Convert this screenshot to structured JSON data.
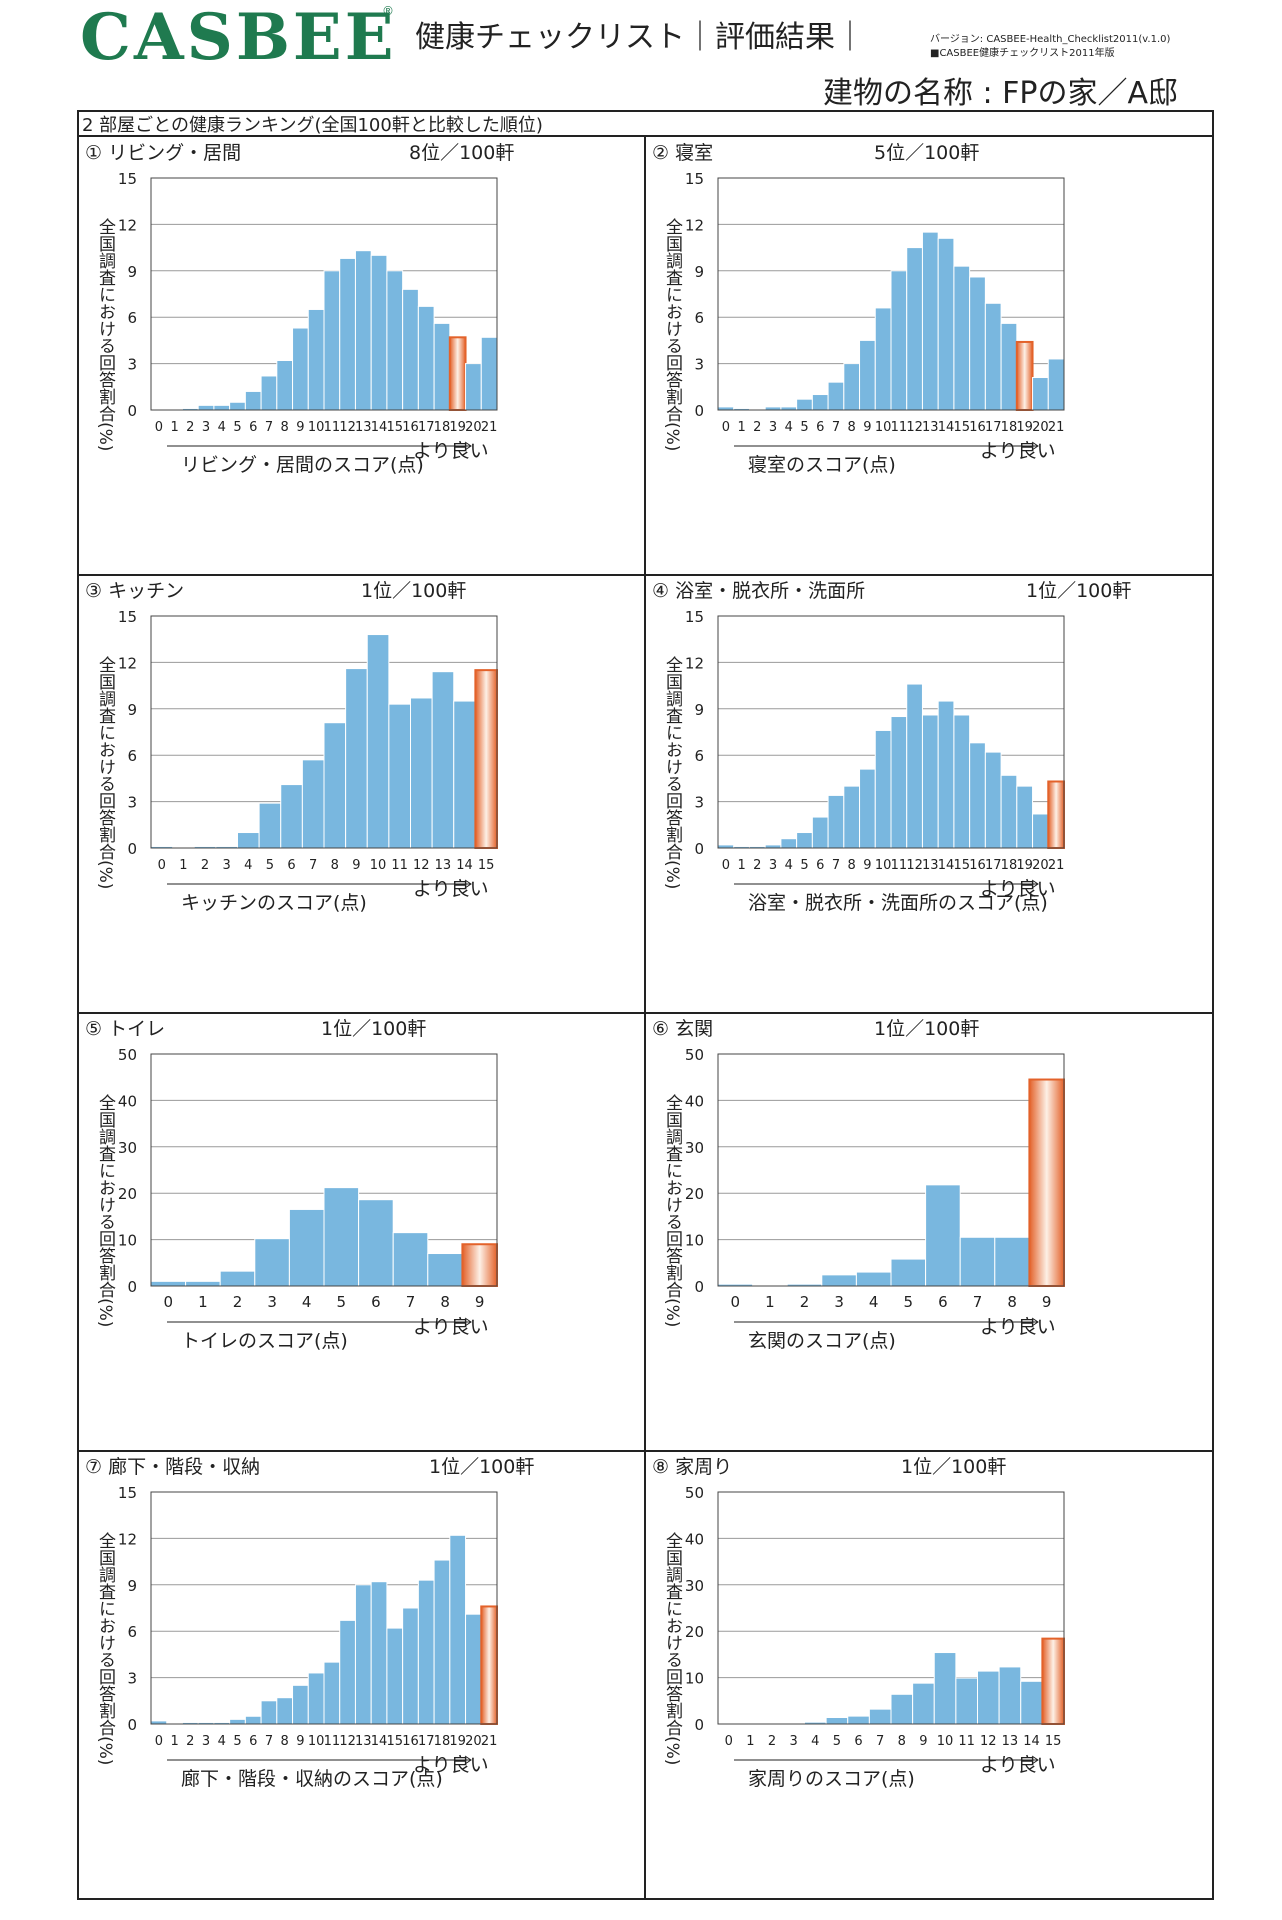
{
  "header": {
    "logo": "CASBEE",
    "logo_mark": "®",
    "title": "健康チェックリスト｜評価結果｜",
    "version": "バージョン: CASBEE-Health_Checklist2011(v.1.0)",
    "edition": "■CASBEE健康チェックリスト2011年版",
    "building_name": "建物の名称 : FPの家／A邸"
  },
  "section_title": "2 部屋ごとの健康ランキング(全国100軒と比較した順位)",
  "y_label": "全国調査における回答割合(%)",
  "better_label": "より良い",
  "colors": {
    "bar": "#79b7df",
    "highlight": "#e3622a",
    "highlight_light": "#fdf0e6"
  },
  "chart_data": [
    {
      "type": "bar",
      "title": "① リビング・居間",
      "rank": "8位／100軒",
      "xlabel": "リビング・居間のスコア(点)",
      "ylabel": "全国調査における回答割合(%)",
      "categories": [
        "0",
        "1",
        "2",
        "3",
        "4",
        "5",
        "6",
        "7",
        "8",
        "9",
        "10",
        "11",
        "12",
        "13",
        "14",
        "15",
        "16",
        "17",
        "18",
        "19",
        "20",
        "21"
      ],
      "values": [
        0,
        0,
        0.1,
        0.3,
        0.3,
        0.5,
        1.2,
        2.2,
        3.2,
        5.3,
        6.5,
        9.0,
        9.8,
        10.3,
        10.0,
        9.0,
        7.8,
        6.7,
        5.6,
        4.7,
        3.0,
        4.7
      ],
      "highlight_index": 19,
      "ylim": [
        0,
        15
      ],
      "yticks": [
        0,
        3,
        6,
        9,
        12,
        15
      ],
      "grid": true
    },
    {
      "type": "bar",
      "title": "② 寝室",
      "rank": "5位／100軒",
      "xlabel": "寝室のスコア(点)",
      "ylabel": "全国調査における回答割合(%)",
      "categories": [
        "0",
        "1",
        "2",
        "3",
        "4",
        "5",
        "6",
        "7",
        "8",
        "9",
        "10",
        "11",
        "12",
        "13",
        "14",
        "15",
        "16",
        "17",
        "18",
        "19",
        "20",
        "21"
      ],
      "values": [
        0.2,
        0.1,
        0,
        0.2,
        0.2,
        0.7,
        1.0,
        1.8,
        3.0,
        4.5,
        6.6,
        9.0,
        10.5,
        11.5,
        11.1,
        9.3,
        8.6,
        6.9,
        5.6,
        4.4,
        2.1,
        3.3
      ],
      "highlight_index": 19,
      "ylim": [
        0,
        15
      ],
      "yticks": [
        0,
        3,
        6,
        9,
        12,
        15
      ],
      "grid": true
    },
    {
      "type": "bar",
      "title": "③ キッチン",
      "rank": "1位／100軒",
      "xlabel": "キッチンのスコア(点)",
      "ylabel": "全国調査における回答割合(%)",
      "categories": [
        "0",
        "1",
        "2",
        "3",
        "4",
        "5",
        "6",
        "7",
        "8",
        "9",
        "10",
        "11",
        "12",
        "13",
        "14",
        "15"
      ],
      "values": [
        0.1,
        0,
        0.1,
        0.1,
        1.0,
        2.9,
        4.1,
        5.7,
        8.1,
        11.6,
        13.8,
        9.3,
        9.7,
        11.4,
        9.5,
        11.5
      ],
      "highlight_index": 15,
      "ylim": [
        0,
        15
      ],
      "yticks": [
        0,
        3,
        6,
        9,
        12,
        15
      ],
      "grid": true
    },
    {
      "type": "bar",
      "title": "④ 浴室・脱衣所・洗面所",
      "rank": "1位／100軒",
      "xlabel": "浴室・脱衣所・洗面所のスコア(点)",
      "ylabel": "全国調査における回答割合(%)",
      "categories": [
        "0",
        "1",
        "2",
        "3",
        "4",
        "5",
        "6",
        "7",
        "8",
        "9",
        "10",
        "11",
        "12",
        "13",
        "14",
        "15",
        "16",
        "17",
        "18",
        "19",
        "20",
        "21"
      ],
      "values": [
        0.2,
        0.1,
        0.1,
        0.2,
        0.6,
        1.0,
        2.0,
        3.4,
        4.0,
        5.1,
        7.6,
        8.5,
        10.6,
        8.6,
        9.5,
        8.6,
        6.8,
        6.2,
        4.7,
        4.0,
        2.2,
        4.3
      ],
      "highlight_index": 21,
      "ylim": [
        0,
        15
      ],
      "yticks": [
        0,
        3,
        6,
        9,
        12,
        15
      ],
      "grid": true
    },
    {
      "type": "bar",
      "title": "⑤ トイレ",
      "rank": "1位／100軒",
      "xlabel": "トイレのスコア(点)",
      "ylabel": "全国調査における回答割合(%)",
      "categories": [
        "0",
        "1",
        "2",
        "3",
        "4",
        "5",
        "6",
        "7",
        "8",
        "9"
      ],
      "values": [
        1.0,
        1.0,
        3.2,
        10.2,
        16.5,
        21.2,
        18.6,
        11.5,
        7.0,
        9.0
      ],
      "highlight_index": 9,
      "ylim": [
        0,
        50
      ],
      "yticks": [
        0,
        10,
        20,
        30,
        40,
        50
      ],
      "grid": true
    },
    {
      "type": "bar",
      "title": "⑥ 玄関",
      "rank": "1位／100軒",
      "xlabel": "玄関のスコア(点)",
      "ylabel": "全国調査における回答割合(%)",
      "categories": [
        "0",
        "1",
        "2",
        "3",
        "4",
        "5",
        "6",
        "7",
        "8",
        "9"
      ],
      "values": [
        0.4,
        0,
        0.4,
        2.4,
        3.0,
        5.8,
        21.8,
        10.5,
        10.5,
        44.5
      ],
      "highlight_index": 9,
      "ylim": [
        0,
        50
      ],
      "yticks": [
        0,
        10,
        20,
        30,
        40,
        50
      ],
      "grid": true
    },
    {
      "type": "bar",
      "title": "⑦ 廊下・階段・収納",
      "rank": "1位／100軒",
      "xlabel": "廊下・階段・収納のスコア(点)",
      "ylabel": "全国調査における回答割合(%)",
      "categories": [
        "0",
        "1",
        "2",
        "3",
        "4",
        "5",
        "6",
        "7",
        "8",
        "9",
        "10",
        "11",
        "12",
        "13",
        "14",
        "15",
        "16",
        "17",
        "18",
        "19",
        "20",
        "21"
      ],
      "values": [
        0.2,
        0,
        0.1,
        0.1,
        0.1,
        0.3,
        0.5,
        1.5,
        1.7,
        2.5,
        3.3,
        4.0,
        6.7,
        9.0,
        9.2,
        6.2,
        7.5,
        9.3,
        10.6,
        12.2,
        7.1,
        7.6
      ],
      "highlight_index": 21,
      "ylim": [
        0,
        15
      ],
      "yticks": [
        0,
        3,
        6,
        9,
        12,
        15
      ],
      "grid": true
    },
    {
      "type": "bar",
      "title": "⑧ 家周り",
      "rank": "1位／100軒",
      "xlabel": "家周りのスコア(点)",
      "ylabel": "全国調査における回答割合(%)",
      "categories": [
        "0",
        "1",
        "2",
        "3",
        "4",
        "5",
        "6",
        "7",
        "8",
        "9",
        "10",
        "11",
        "12",
        "13",
        "14",
        "15"
      ],
      "values": [
        0,
        0,
        0,
        0,
        0.4,
        1.4,
        1.7,
        3.2,
        6.4,
        8.8,
        15.4,
        9.9,
        11.4,
        12.3,
        9.2,
        18.4
      ],
      "highlight_index": 15,
      "ylim": [
        0,
        50
      ],
      "yticks": [
        0,
        10,
        20,
        30,
        40,
        50
      ],
      "grid": true
    }
  ]
}
